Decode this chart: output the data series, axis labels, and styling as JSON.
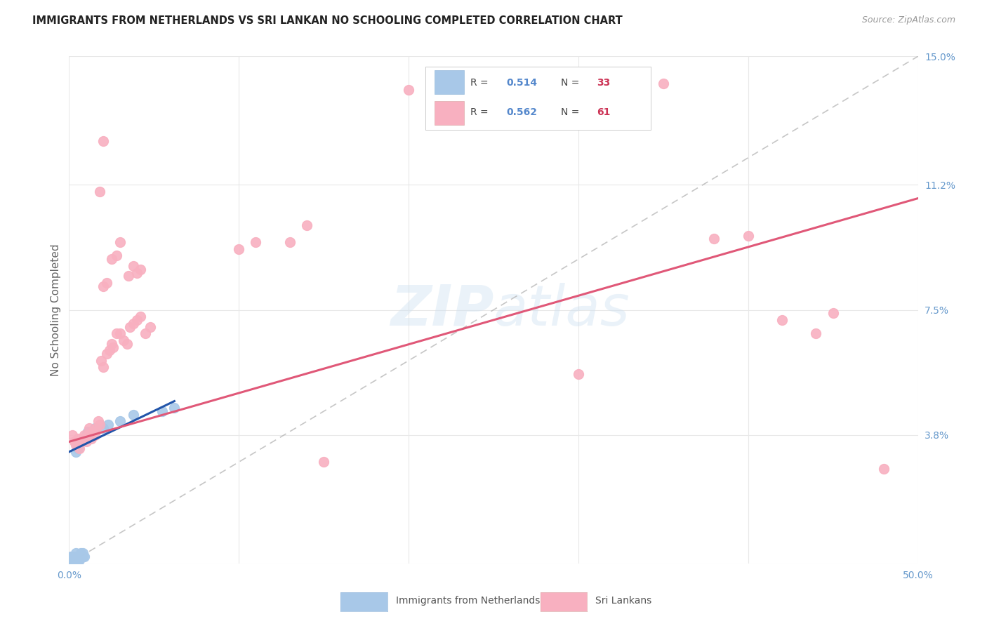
{
  "title": "IMMIGRANTS FROM NETHERLANDS VS SRI LANKAN NO SCHOOLING COMPLETED CORRELATION CHART",
  "source": "Source: ZipAtlas.com",
  "ylabel": "No Schooling Completed",
  "xlim": [
    0.0,
    0.5
  ],
  "ylim": [
    0.0,
    0.15
  ],
  "xtick_vals": [
    0.0,
    0.1,
    0.2,
    0.3,
    0.4,
    0.5
  ],
  "xtick_labels": [
    "0.0%",
    "",
    "",
    "",
    "",
    "50.0%"
  ],
  "ytick_vals": [
    0.0,
    0.038,
    0.075,
    0.112,
    0.15
  ],
  "ytick_labels": [
    "",
    "3.8%",
    "7.5%",
    "11.2%",
    "15.0%"
  ],
  "watermark": "ZIPatlas",
  "background_color": "#ffffff",
  "grid_color": "#e8e8e8",
  "blue_dot_color": "#a8c8e8",
  "pink_dot_color": "#f8b0c0",
  "blue_line_color": "#2255aa",
  "pink_line_color": "#e05878",
  "dashed_line_color": "#b8b8b8",
  "nl_line_x": [
    0.0,
    0.062
  ],
  "nl_line_y": [
    0.033,
    0.048
  ],
  "sl_line_x": [
    0.0,
    0.5
  ],
  "sl_line_y": [
    0.036,
    0.108
  ],
  "dash_line_x": [
    0.0,
    0.5
  ],
  "dash_line_y": [
    0.0,
    0.15
  ],
  "netherlands_points": [
    [
      0.001,
      0.0
    ],
    [
      0.001,
      0.001
    ],
    [
      0.001,
      0.002
    ],
    [
      0.002,
      0.0
    ],
    [
      0.002,
      0.001
    ],
    [
      0.002,
      0.002
    ],
    [
      0.003,
      0.0
    ],
    [
      0.003,
      0.001
    ],
    [
      0.003,
      0.002
    ],
    [
      0.004,
      0.001
    ],
    [
      0.004,
      0.002
    ],
    [
      0.004,
      0.003
    ],
    [
      0.005,
      0.001
    ],
    [
      0.005,
      0.002
    ],
    [
      0.006,
      0.001
    ],
    [
      0.006,
      0.002
    ],
    [
      0.007,
      0.002
    ],
    [
      0.007,
      0.003
    ],
    [
      0.008,
      0.002
    ],
    [
      0.008,
      0.003
    ],
    [
      0.009,
      0.002
    ],
    [
      0.01,
      0.038
    ],
    [
      0.011,
      0.039
    ],
    [
      0.012,
      0.038
    ],
    [
      0.015,
      0.04
    ],
    [
      0.02,
      0.04
    ],
    [
      0.023,
      0.041
    ],
    [
      0.004,
      0.033
    ],
    [
      0.005,
      0.034
    ],
    [
      0.03,
      0.042
    ],
    [
      0.038,
      0.044
    ],
    [
      0.055,
      0.045
    ],
    [
      0.062,
      0.046
    ]
  ],
  "srilanka_points": [
    [
      0.002,
      0.038
    ],
    [
      0.003,
      0.036
    ],
    [
      0.004,
      0.035
    ],
    [
      0.005,
      0.037
    ],
    [
      0.006,
      0.034
    ],
    [
      0.007,
      0.036
    ],
    [
      0.008,
      0.037
    ],
    [
      0.009,
      0.038
    ],
    [
      0.01,
      0.036
    ],
    [
      0.011,
      0.038
    ],
    [
      0.012,
      0.04
    ],
    [
      0.013,
      0.037
    ],
    [
      0.014,
      0.039
    ],
    [
      0.015,
      0.038
    ],
    [
      0.016,
      0.04
    ],
    [
      0.017,
      0.042
    ],
    [
      0.018,
      0.041
    ],
    [
      0.019,
      0.06
    ],
    [
      0.02,
      0.058
    ],
    [
      0.022,
      0.062
    ],
    [
      0.024,
      0.063
    ],
    [
      0.025,
      0.065
    ],
    [
      0.026,
      0.064
    ],
    [
      0.028,
      0.068
    ],
    [
      0.03,
      0.068
    ],
    [
      0.032,
      0.066
    ],
    [
      0.034,
      0.065
    ],
    [
      0.036,
      0.07
    ],
    [
      0.038,
      0.071
    ],
    [
      0.04,
      0.072
    ],
    [
      0.042,
      0.073
    ],
    [
      0.045,
      0.068
    ],
    [
      0.048,
      0.07
    ],
    [
      0.02,
      0.082
    ],
    [
      0.022,
      0.083
    ],
    [
      0.025,
      0.09
    ],
    [
      0.028,
      0.091
    ],
    [
      0.03,
      0.095
    ],
    [
      0.035,
      0.085
    ],
    [
      0.038,
      0.088
    ],
    [
      0.04,
      0.086
    ],
    [
      0.042,
      0.087
    ],
    [
      0.018,
      0.11
    ],
    [
      0.02,
      0.125
    ],
    [
      0.1,
      0.093
    ],
    [
      0.11,
      0.095
    ],
    [
      0.13,
      0.095
    ],
    [
      0.14,
      0.1
    ],
    [
      0.2,
      0.14
    ],
    [
      0.22,
      0.133
    ],
    [
      0.28,
      0.143
    ],
    [
      0.35,
      0.142
    ],
    [
      0.38,
      0.096
    ],
    [
      0.4,
      0.097
    ],
    [
      0.42,
      0.072
    ],
    [
      0.44,
      0.068
    ],
    [
      0.45,
      0.074
    ],
    [
      0.48,
      0.028
    ],
    [
      0.3,
      0.056
    ],
    [
      0.15,
      0.03
    ]
  ]
}
